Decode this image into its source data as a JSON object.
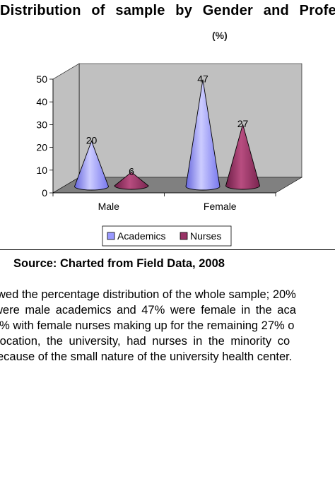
{
  "title": "Distribution of sample by Gender and Profession",
  "subtitle": "(%)",
  "source": "Source:  Charted from Field Data, 2008",
  "body_lines": [
    "wed the percentage distribution of the whole sample; 20%",
    "were male academics and 47% were female in the aca",
    "6% with female nurses making up for the remaining 27% o",
    "location, the university, had nurses in the minority co",
    "ecause of the small nature of the university health center."
  ],
  "colors": {
    "academics": "#9999ff",
    "nurses": "#993366",
    "wall": "#c0c0c0",
    "floor": "#808080"
  },
  "chart_data": {
    "type": "bar",
    "shape": "cone-3d",
    "categories": [
      "Male",
      "Female"
    ],
    "series": [
      {
        "name": "Academics",
        "values": [
          20,
          47
        ]
      },
      {
        "name": "Nurses",
        "values": [
          6,
          27
        ]
      }
    ],
    "yticks": [
      0,
      10,
      20,
      30,
      40,
      50
    ],
    "ylim": [
      0,
      50
    ],
    "legend": "bottom",
    "grid": false
  }
}
